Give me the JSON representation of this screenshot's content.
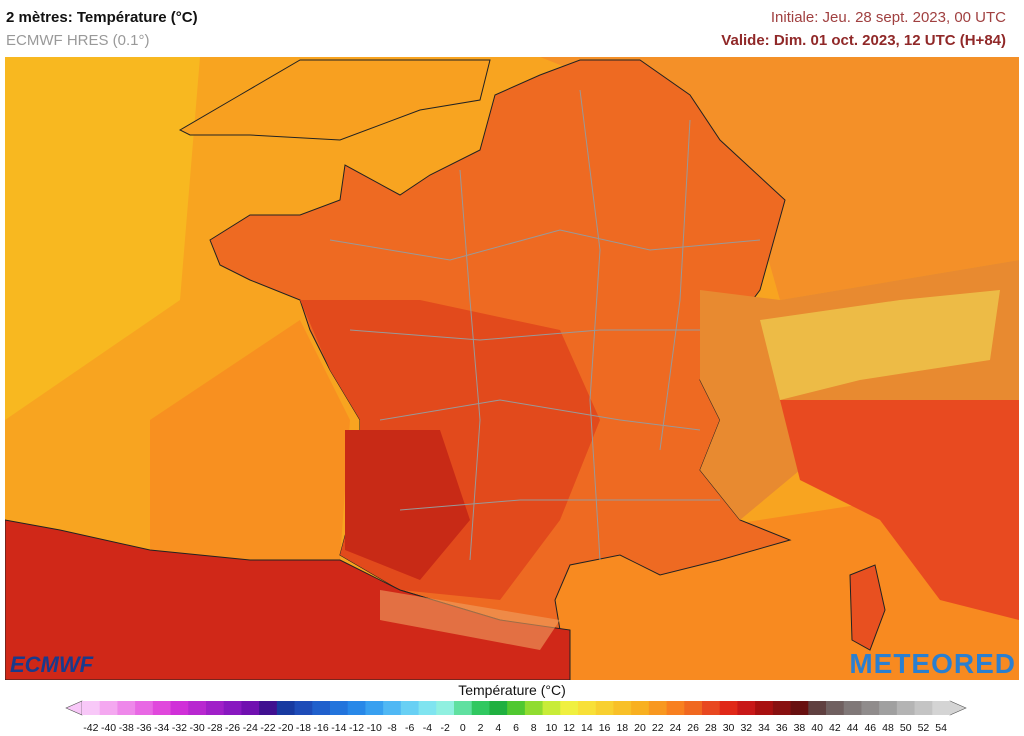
{
  "header": {
    "title": "2 mètres: Température (°C)",
    "model": "ECMWF HRES (0.1°)",
    "initial": "Initiale: Jeu. 28 sept. 2023, 00 UTC",
    "valid": "Valide: Dim. 01 oct. 2023, 12 UTC (H+84)"
  },
  "logos": {
    "left": "ECMWF",
    "right": "METEORED"
  },
  "legend": {
    "title": "Température (°C)",
    "ticks": [
      -42,
      -40,
      -38,
      -36,
      -34,
      -32,
      -30,
      -28,
      -26,
      -24,
      -22,
      -20,
      -18,
      -16,
      -14,
      -12,
      -10,
      -8,
      -6,
      -4,
      -2,
      0,
      2,
      4,
      6,
      8,
      10,
      12,
      14,
      16,
      18,
      20,
      22,
      24,
      26,
      28,
      30,
      32,
      34,
      36,
      38,
      40,
      42,
      44,
      46,
      48,
      50,
      52,
      54
    ],
    "colors": [
      "#f8c8f8",
      "#f4a8f0",
      "#ee88ea",
      "#e868e4",
      "#e048dc",
      "#d030d8",
      "#b828d0",
      "#a020c8",
      "#8818c0",
      "#7010b0",
      "#401090",
      "#183aa0",
      "#1e4cb8",
      "#2060cc",
      "#2274dc",
      "#2888e8",
      "#38a0f0",
      "#50b8f4",
      "#68d0f4",
      "#80e4f0",
      "#90f0e0",
      "#60e0a0",
      "#30c860",
      "#20b040",
      "#50c830",
      "#90dc30",
      "#c8ec38",
      "#f0f040",
      "#f8e038",
      "#f8d030",
      "#f8c028",
      "#f8b020",
      "#f89820",
      "#f88020",
      "#f06820",
      "#e84820",
      "#e02818",
      "#c81818",
      "#a81010",
      "#881010",
      "#681010",
      "#604040",
      "#706060",
      "#807878",
      "#908c8c",
      "#a0a0a0",
      "#b4b4b4",
      "#c4c4c4",
      "#d4d4d4"
    ]
  }
}
